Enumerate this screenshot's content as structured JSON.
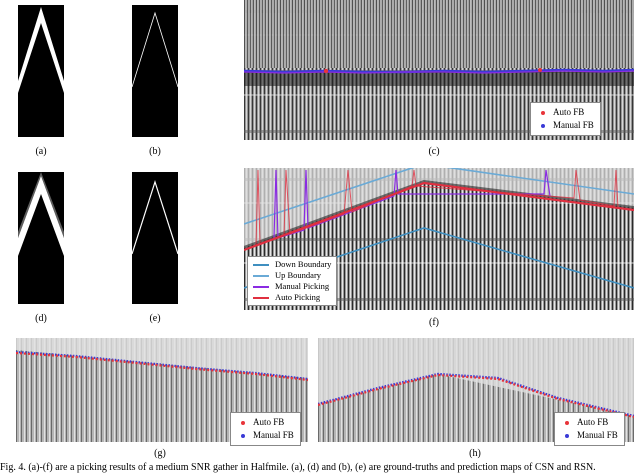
{
  "figure": {
    "subfigure_labels": [
      "(a)",
      "(b)",
      "(c)",
      "(d)",
      "(e)",
      "(f)",
      "(g)",
      "(h)"
    ],
    "caption": "Fig. 4.   (a)-(f) are a picking results of a medium SNR gather in Halfmile. (a), (d) and (b), (e) are ground-truths and prediction maps of CSN and RSN."
  },
  "legend_c": {
    "auto": "Auto FB",
    "manual": "Manual FB"
  },
  "legend_f": {
    "down": "Down Boundary",
    "up": "Up Boundary",
    "manual": "Manual Picking",
    "auto": "Auto Picking"
  },
  "legend_g": {
    "auto": "Auto FB",
    "manual": "Manual FB"
  },
  "legend_h": {
    "auto": "Auto FB",
    "manual": "Manual FB"
  },
  "colors": {
    "auto": "#e8343a",
    "manual": "#3a3ad6",
    "down_boundary": "#3f8fc0",
    "up_boundary": "#6aaad6",
    "manual_picking": "#8a2be2",
    "auto_picking": "#e03040"
  }
}
